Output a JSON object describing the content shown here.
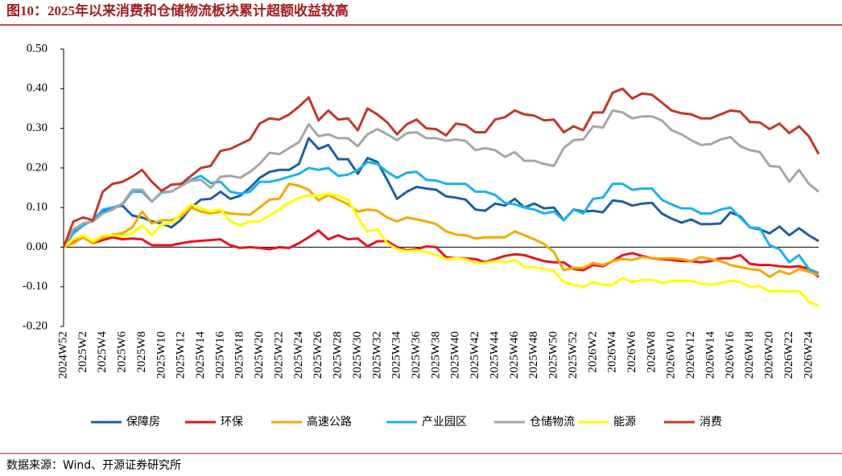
{
  "chart_data": {
    "type": "line",
    "title": "图10：2025年以来消费和仓储物流板块累计超额收益较高",
    "source": "数据来源：Wind、开源证券研究所",
    "categories": [
      "2024W52",
      null,
      "2025W2",
      null,
      "2025W4",
      null,
      "2025W6",
      null,
      "2025W8",
      null,
      "2025W10",
      null,
      "2025W12",
      null,
      "2025W14",
      null,
      "2025W16",
      null,
      "2025W18",
      null,
      "2025W20",
      null,
      "2025W22",
      null,
      "2025W24",
      null,
      "2025W26",
      null,
      "2025W28",
      null,
      "2025W30",
      null,
      "2025W32",
      null,
      "2025W34",
      null,
      "2025W36",
      null,
      "2025W38",
      null,
      "2025W40",
      null,
      "2025W42",
      null,
      "2025W44",
      null,
      "2025W46",
      null,
      "2025W48",
      null,
      "2025W50",
      null,
      "2025W52",
      null,
      "2026W2",
      null,
      "2026W4",
      null,
      "2026W6",
      null,
      "2026W8",
      null,
      "2026W10",
      null,
      "2026W12",
      null,
      "2026W14",
      null,
      "2026W16",
      null,
      "2026W18",
      null,
      "2026W20",
      null,
      "2026W22",
      null,
      "2026W24",
      null
    ],
    "ylim": [
      -0.2,
      0.5
    ],
    "yticks": [
      {
        "value": 0.5,
        "label": "0.50"
      },
      {
        "value": 0.4,
        "label": "0.40"
      },
      {
        "value": 0.3,
        "label": "0.30"
      },
      {
        "value": 0.2,
        "label": "0.20"
      },
      {
        "value": 0.1,
        "label": "0.10"
      },
      {
        "value": 0,
        "label": "0.00"
      },
      {
        "value": -0.1,
        "label": "-0.10"
      },
      {
        "value": -0.2,
        "label": "-0.20"
      }
    ],
    "grid": false,
    "legend": "bottom",
    "series": [
      {
        "name": "保障房",
        "color": "#1f5fa0",
        "values": [
          0,
          0.04,
          0.06,
          0.065,
          0.09,
          0.1,
          0.105,
          0.08,
          0.075,
          0.065,
          0.06,
          0.05,
          0.07,
          0.1,
          0.12,
          0.122,
          0.14,
          0.122,
          0.13,
          0.15,
          0.175,
          0.19,
          0.195,
          0.195,
          0.21,
          0.275,
          0.248,
          0.258,
          0.222,
          0.222,
          0.185,
          0.225,
          0.215,
          0.17,
          0.122,
          0.14,
          0.152,
          0.148,
          0.145,
          0.128,
          0.125,
          0.12,
          0.095,
          0.092,
          0.11,
          0.105,
          0.122,
          0.1,
          0.11,
          0.098,
          0.1,
          0.068,
          0.095,
          0.09,
          0.092,
          0.088,
          0.118,
          0.115,
          0.105,
          0.11,
          0.112,
          0.085,
          0.072,
          0.062,
          0.07,
          0.058,
          0.058,
          0.06,
          0.088,
          0.078,
          0.05,
          0.045,
          0.035,
          0.052,
          0.03,
          0.048,
          0.03,
          0.015
        ]
      },
      {
        "name": "环保",
        "color": "#e8141c",
        "values": [
          0,
          0.012,
          0.025,
          0.01,
          0.018,
          0.025,
          0.02,
          0.022,
          0.02,
          0.005,
          0.005,
          0.005,
          0.01,
          0.014,
          0.016,
          0.018,
          0.02,
          0.005,
          -0.002,
          0,
          -0.002,
          -0.005,
          0,
          -0.002,
          0.01,
          0.025,
          0.042,
          0.02,
          0.03,
          0.02,
          0.022,
          0.002,
          0.015,
          0.015,
          0,
          -0.008,
          -0.005,
          0.002,
          0,
          -0.025,
          -0.028,
          -0.028,
          -0.03,
          -0.038,
          -0.03,
          -0.022,
          -0.018,
          -0.02,
          -0.028,
          -0.035,
          -0.038,
          -0.038,
          -0.055,
          -0.058,
          -0.045,
          -0.048,
          -0.035,
          -0.02,
          -0.015,
          -0.022,
          -0.028,
          -0.03,
          -0.032,
          -0.035,
          -0.035,
          -0.038,
          -0.035,
          -0.028,
          -0.028,
          -0.02,
          -0.042,
          -0.045,
          -0.045,
          -0.048,
          -0.05,
          -0.048,
          -0.055,
          -0.075
        ]
      },
      {
        "name": "高速公路",
        "color": "#f5a800",
        "values": [
          0,
          0.01,
          0.025,
          0.01,
          0.025,
          0.032,
          0.035,
          0.05,
          0.09,
          0.06,
          0.068,
          0.068,
          0.078,
          0.1,
          0.09,
          0.085,
          0.09,
          0.085,
          0.083,
          0.082,
          0.1,
          0.12,
          0.122,
          0.16,
          0.155,
          0.145,
          0.118,
          0.132,
          0.12,
          0.108,
          0.09,
          0.095,
          0.092,
          0.075,
          0.065,
          0.075,
          0.07,
          0.065,
          0.058,
          0.04,
          0.032,
          0.03,
          0.022,
          0.025,
          0.025,
          0.025,
          0.04,
          0.03,
          0.02,
          0.008,
          -0.012,
          -0.058,
          -0.052,
          -0.052,
          -0.04,
          -0.045,
          -0.035,
          -0.03,
          -0.032,
          -0.025,
          -0.028,
          -0.028,
          -0.028,
          -0.03,
          -0.035,
          -0.025,
          -0.03,
          -0.035,
          -0.045,
          -0.05,
          -0.055,
          -0.058,
          -0.075,
          -0.06,
          -0.068,
          -0.055,
          -0.062,
          -0.07
        ]
      },
      {
        "name": "产业园区",
        "color": "#1ab2ea",
        "values": [
          0,
          0.035,
          0.055,
          0.068,
          0.095,
          0.1,
          0.108,
          0.14,
          0.14,
          0.115,
          0.138,
          0.14,
          0.155,
          0.17,
          0.18,
          0.162,
          0.165,
          0.14,
          0.135,
          0.14,
          0.165,
          0.165,
          0.17,
          0.178,
          0.185,
          0.2,
          0.195,
          0.2,
          0.18,
          0.183,
          0.195,
          0.215,
          0.21,
          0.19,
          0.175,
          0.188,
          0.19,
          0.17,
          0.168,
          0.16,
          0.16,
          0.16,
          0.14,
          0.14,
          0.132,
          0.112,
          0.108,
          0.1,
          0.095,
          0.085,
          0.09,
          0.068,
          0.095,
          0.085,
          0.122,
          0.125,
          0.16,
          0.16,
          0.145,
          0.148,
          0.148,
          0.12,
          0.108,
          0.098,
          0.098,
          0.085,
          0.085,
          0.095,
          0.1,
          0.075,
          0.05,
          0.048,
          0.005,
          -0.005,
          -0.038,
          -0.02,
          -0.055,
          -0.065
        ]
      },
      {
        "name": "仓储物流",
        "color": "#a6a6a6",
        "values": [
          0,
          0.045,
          0.06,
          0.065,
          0.085,
          0.095,
          0.11,
          0.145,
          0.145,
          0.115,
          0.14,
          0.14,
          0.155,
          0.168,
          0.17,
          0.15,
          0.178,
          0.18,
          0.175,
          0.19,
          0.21,
          0.238,
          0.235,
          0.25,
          0.265,
          0.31,
          0.28,
          0.285,
          0.275,
          0.275,
          0.255,
          0.285,
          0.298,
          0.285,
          0.27,
          0.288,
          0.29,
          0.275,
          0.275,
          0.268,
          0.272,
          0.268,
          0.245,
          0.25,
          0.245,
          0.228,
          0.24,
          0.218,
          0.218,
          0.21,
          0.205,
          0.25,
          0.27,
          0.272,
          0.305,
          0.302,
          0.345,
          0.34,
          0.325,
          0.33,
          0.33,
          0.32,
          0.295,
          0.285,
          0.27,
          0.258,
          0.26,
          0.272,
          0.278,
          0.255,
          0.245,
          0.24,
          0.205,
          0.203,
          0.165,
          0.195,
          0.16,
          0.14
        ]
      },
      {
        "name": "能源",
        "color": "#ffff00",
        "values": [
          0,
          0.02,
          0.03,
          0.015,
          0.03,
          0.03,
          0.028,
          0.035,
          0.055,
          0.03,
          0.058,
          0.06,
          0.085,
          0.108,
          0.098,
          0.09,
          0.095,
          0.065,
          0.055,
          0.065,
          0.065,
          0.08,
          0.095,
          0.112,
          0.125,
          0.13,
          0.13,
          0.135,
          0.13,
          0.12,
          0.075,
          0.04,
          0.045,
          0.01,
          -0.005,
          -0.01,
          -0.008,
          -0.012,
          -0.02,
          -0.03,
          -0.028,
          -0.03,
          -0.04,
          -0.04,
          -0.035,
          -0.038,
          -0.032,
          -0.05,
          -0.05,
          -0.055,
          -0.06,
          -0.088,
          -0.095,
          -0.1,
          -0.088,
          -0.095,
          -0.095,
          -0.078,
          -0.088,
          -0.083,
          -0.082,
          -0.09,
          -0.085,
          -0.085,
          -0.085,
          -0.092,
          -0.095,
          -0.09,
          -0.085,
          -0.088,
          -0.1,
          -0.098,
          -0.112,
          -0.11,
          -0.112,
          -0.11,
          -0.138,
          -0.148
        ]
      },
      {
        "name": "消费",
        "color": "#c0392b",
        "values": [
          0,
          0.065,
          0.075,
          0.068,
          0.14,
          0.16,
          0.165,
          0.178,
          0.195,
          0.165,
          0.142,
          0.158,
          0.16,
          0.18,
          0.2,
          0.205,
          0.243,
          0.248,
          0.26,
          0.272,
          0.312,
          0.325,
          0.322,
          0.335,
          0.355,
          0.378,
          0.32,
          0.345,
          0.322,
          0.325,
          0.295,
          0.35,
          0.335,
          0.315,
          0.285,
          0.31,
          0.322,
          0.3,
          0.298,
          0.282,
          0.312,
          0.308,
          0.29,
          0.29,
          0.322,
          0.328,
          0.345,
          0.335,
          0.332,
          0.32,
          0.322,
          0.29,
          0.305,
          0.295,
          0.34,
          0.34,
          0.39,
          0.4,
          0.375,
          0.388,
          0.385,
          0.365,
          0.345,
          0.338,
          0.335,
          0.325,
          0.325,
          0.335,
          0.345,
          0.342,
          0.316,
          0.315,
          0.298,
          0.312,
          0.288,
          0.305,
          0.28,
          0.235
        ]
      }
    ]
  }
}
